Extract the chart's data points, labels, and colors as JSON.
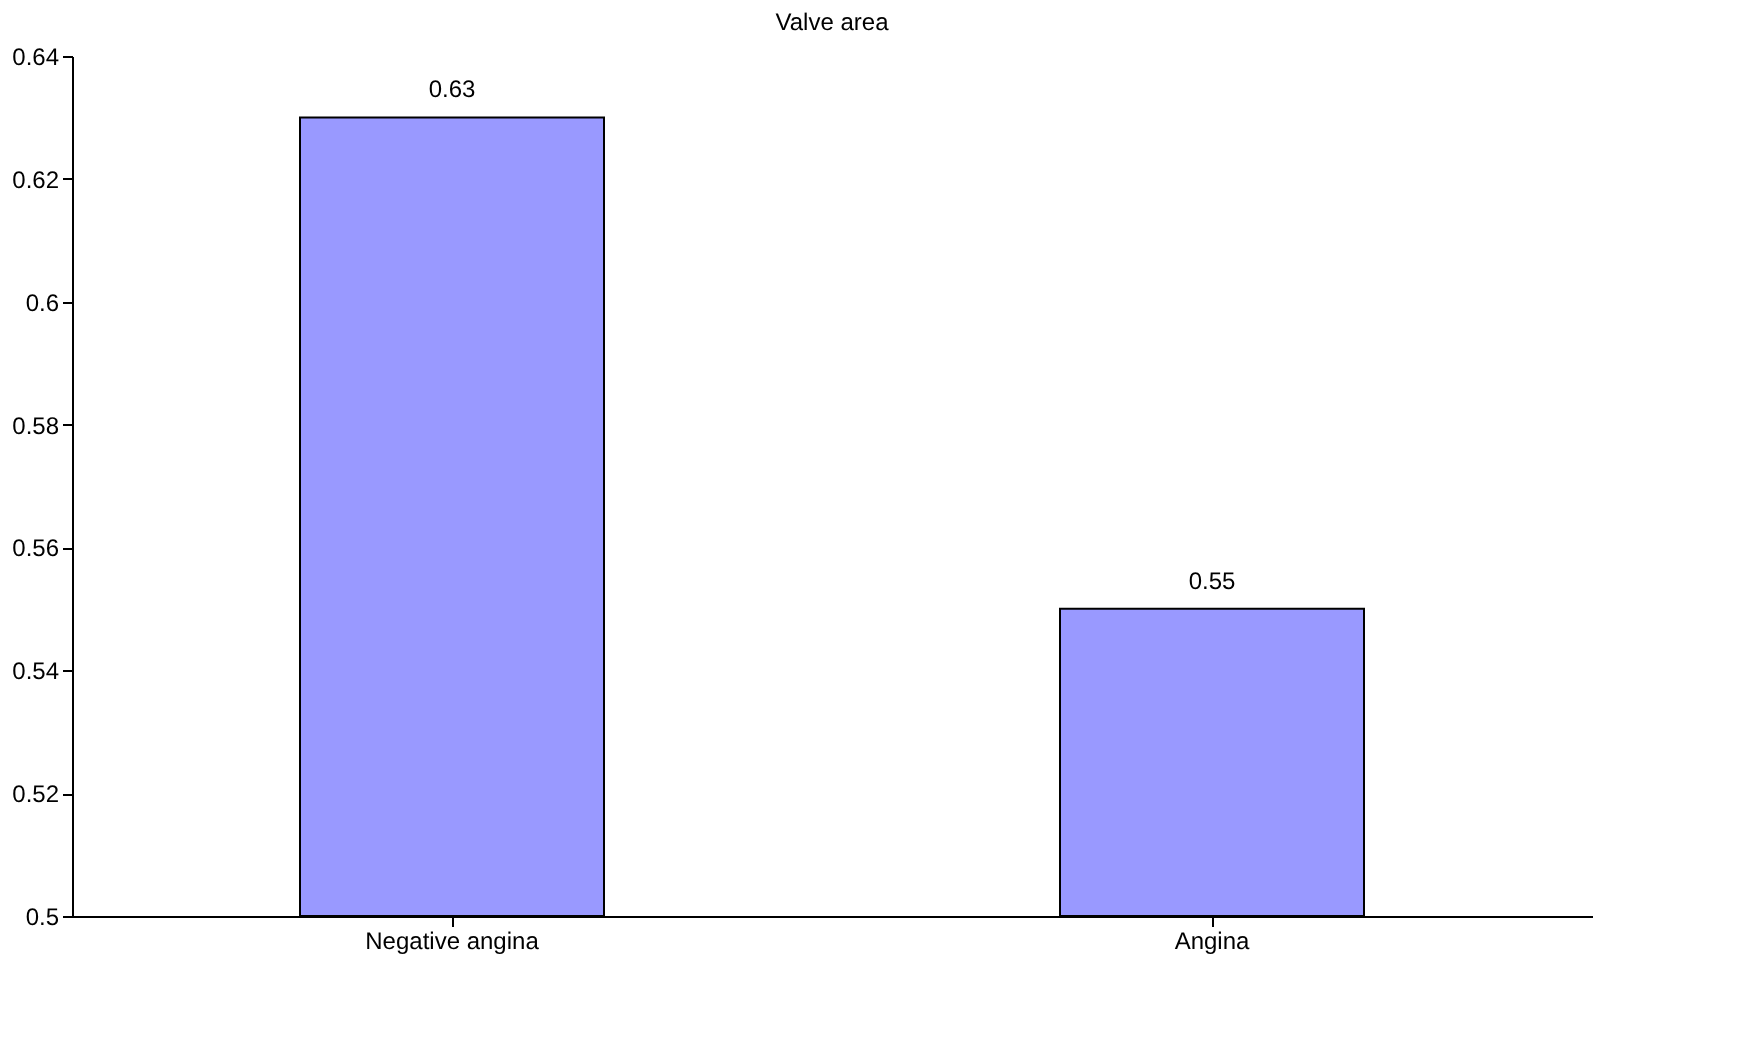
{
  "chart_data": {
    "type": "bar",
    "title": "Valve area",
    "categories": [
      "Negative angina",
      "Angina"
    ],
    "values": [
      0.63,
      0.55
    ],
    "color": "#9999ff",
    "ylim": [
      0.5,
      0.64
    ],
    "yticks": [
      0.5,
      0.52,
      0.54,
      0.56,
      0.58,
      0.6,
      0.62,
      0.64
    ],
    "data_labels": true,
    "grid": false
  }
}
